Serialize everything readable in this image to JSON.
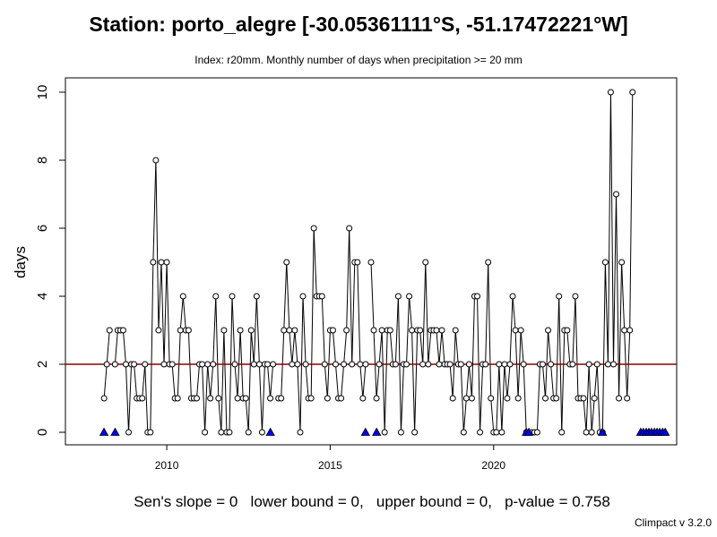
{
  "chart_data": {
    "type": "line",
    "title": "Station: porto_alegre [-30.05361111°S, -51.17472221°W]",
    "subtitle": "Index: r20mm. Monthly number of days when precipitation >= 20 mm",
    "ylabel": "days",
    "xlabel": "",
    "ylim": [
      0,
      10
    ],
    "xlim": [
      2006.9,
      2025.6
    ],
    "x_ticks": [
      2010,
      2015,
      2020
    ],
    "y_ticks": [
      0,
      2,
      4,
      6,
      8,
      10
    ],
    "grid": false,
    "start_year": 2008,
    "start_month": 1,
    "series": [
      {
        "values": [
          null,
          1,
          2,
          3,
          null,
          2,
          3,
          3,
          3,
          2,
          0,
          2,
          2,
          1,
          1,
          1,
          2,
          0,
          0,
          5,
          8,
          3,
          5,
          2,
          5,
          2,
          2,
          1,
          1,
          3,
          4,
          3,
          3,
          1,
          1,
          1,
          2,
          2,
          0,
          2,
          1,
          2,
          4,
          1,
          0,
          3,
          0,
          0,
          4,
          2,
          1,
          3,
          1,
          1,
          0,
          3,
          2,
          4,
          2,
          0,
          2,
          2,
          1,
          2,
          null,
          1,
          1,
          3,
          5,
          3,
          2,
          3,
          2,
          0,
          4,
          2,
          1,
          1,
          6,
          4,
          4,
          4,
          2,
          1,
          3,
          3,
          2,
          1,
          1,
          2,
          3,
          6,
          2,
          5,
          5,
          2,
          1,
          2,
          null,
          5,
          3,
          1,
          2,
          3,
          0,
          3,
          3,
          2,
          2,
          4,
          0,
          2,
          2,
          4,
          3,
          0,
          3,
          3,
          2,
          5,
          2,
          3,
          3,
          3,
          2,
          3,
          2,
          2,
          2,
          1,
          3,
          2,
          2,
          0,
          1,
          2,
          1,
          4,
          4,
          0,
          2,
          2,
          5,
          1,
          0,
          0,
          2,
          0,
          2,
          1,
          2,
          4,
          3,
          1,
          3,
          2,
          0,
          null,
          0,
          0,
          0,
          2,
          2,
          1,
          3,
          2,
          1,
          1,
          4,
          0,
          3,
          3,
          2,
          2,
          4,
          1,
          1,
          1,
          0,
          2,
          0,
          1,
          2,
          0,
          0,
          5,
          2,
          10,
          2,
          7,
          1,
          5,
          3,
          1,
          3,
          10,
          null,
          null,
          null,
          null,
          null,
          null,
          null,
          null
        ]
      }
    ],
    "missing_marker_years": [
      2008.08,
      2008.42,
      2013.17,
      2016.08,
      2016.42,
      2021.0,
      2021.08,
      2023.33,
      2024.5,
      2024.58,
      2024.67,
      2024.75,
      2024.83,
      2024.92,
      2025.0,
      2025.08,
      2025.17,
      2025.25
    ],
    "trend_line": {
      "y": 2.0
    }
  },
  "stats_text": "Sen's slope = 0   lower bound = 0,   upper bound = 0,   p-value = 0.758",
  "footer_text": "Climpact v 3.2.0",
  "colors": {
    "line": "#000000",
    "trend": "#8b0000",
    "missing": "#0000ff"
  }
}
